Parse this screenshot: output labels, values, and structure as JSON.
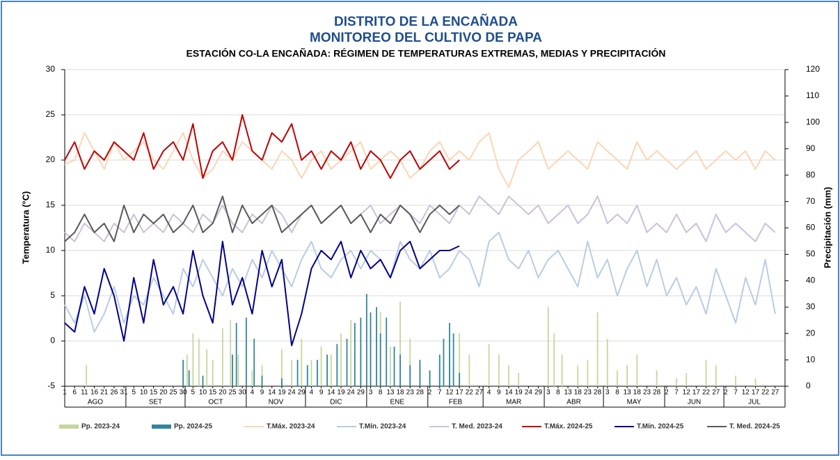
{
  "chart_data": {
    "type": "line",
    "title": "DISTRITO DE LA ENCAÑADA",
    "subtitle": "MONITOREO DEL CULTIVO DE PAPA",
    "subtitle2": "ESTACIÓN CO-LA ENCAÑADA: RÉGIMEN DE TEMPERATURAS EXTREMAS, MEDIAS Y PRECIPITACIÓN",
    "y_label": "Temperatura (°C)",
    "y2_label": "Precipitación (mm)",
    "months": [
      "AGO",
      "SET",
      "OCT",
      "NOV",
      "DIC",
      "ENE",
      "FEB",
      "MAR",
      "ABR",
      "MAY",
      "JUN",
      "JUL"
    ],
    "xlim": [
      0,
      365
    ],
    "ylim": [
      -5,
      30
    ],
    "yticks": [
      -5,
      0,
      5,
      10,
      15,
      20,
      25,
      30
    ],
    "y2lim": [
      0,
      120
    ],
    "y2ticks": [
      0,
      10,
      20,
      30,
      40,
      50,
      60,
      70,
      80,
      90,
      100,
      110,
      120
    ],
    "grid": true,
    "xticks": [
      {
        "value": 0,
        "label": "1"
      },
      {
        "value": 5,
        "label": "6"
      },
      {
        "value": 10,
        "label": "11"
      },
      {
        "value": 15,
        "label": "16"
      },
      {
        "value": 20,
        "label": "21"
      },
      {
        "value": 25,
        "label": "26"
      },
      {
        "value": 30,
        "label": "31"
      },
      {
        "value": 35,
        "label": "5"
      },
      {
        "value": 40,
        "label": "10"
      },
      {
        "value": 45,
        "label": "15"
      },
      {
        "value": 50,
        "label": "20"
      },
      {
        "value": 55,
        "label": "25"
      },
      {
        "value": 60,
        "label": "30"
      },
      {
        "value": 65,
        "label": "5"
      },
      {
        "value": 70,
        "label": "10"
      },
      {
        "value": 75,
        "label": "15"
      },
      {
        "value": 80,
        "label": "20"
      },
      {
        "value": 85,
        "label": "25"
      },
      {
        "value": 90,
        "label": "30"
      },
      {
        "value": 95,
        "label": "4"
      },
      {
        "value": 100,
        "label": "9"
      },
      {
        "value": 105,
        "label": "14"
      },
      {
        "value": 110,
        "label": "19"
      },
      {
        "value": 115,
        "label": "24"
      },
      {
        "value": 120,
        "label": "29"
      },
      {
        "value": 125,
        "label": "4"
      },
      {
        "value": 130,
        "label": "9"
      },
      {
        "value": 135,
        "label": "14"
      },
      {
        "value": 140,
        "label": "19"
      },
      {
        "value": 145,
        "label": "24"
      },
      {
        "value": 150,
        "label": "29"
      },
      {
        "value": 155,
        "label": "3"
      },
      {
        "value": 160,
        "label": "8"
      },
      {
        "value": 165,
        "label": "13"
      },
      {
        "value": 170,
        "label": "18"
      },
      {
        "value": 175,
        "label": "23"
      },
      {
        "value": 180,
        "label": "28"
      },
      {
        "value": 185,
        "label": "2"
      },
      {
        "value": 190,
        "label": "7"
      },
      {
        "value": 195,
        "label": "12"
      },
      {
        "value": 200,
        "label": "17"
      },
      {
        "value": 205,
        "label": "22"
      },
      {
        "value": 210,
        "label": "27"
      },
      {
        "value": 215,
        "label": "4"
      },
      {
        "value": 220,
        "label": "9"
      },
      {
        "value": 225,
        "label": "14"
      },
      {
        "value": 230,
        "label": "19"
      },
      {
        "value": 235,
        "label": "24"
      },
      {
        "value": 240,
        "label": "29"
      },
      {
        "value": 245,
        "label": "3"
      },
      {
        "value": 250,
        "label": "8"
      },
      {
        "value": 255,
        "label": "13"
      },
      {
        "value": 260,
        "label": "18"
      },
      {
        "value": 265,
        "label": "23"
      },
      {
        "value": 270,
        "label": "28"
      },
      {
        "value": 275,
        "label": "3"
      },
      {
        "value": 280,
        "label": "8"
      },
      {
        "value": 285,
        "label": "13"
      },
      {
        "value": 290,
        "label": "18"
      },
      {
        "value": 295,
        "label": "23"
      },
      {
        "value": 300,
        "label": "28"
      },
      {
        "value": 305,
        "label": "2"
      },
      {
        "value": 310,
        "label": "7"
      },
      {
        "value": 315,
        "label": "12"
      },
      {
        "value": 320,
        "label": "17"
      },
      {
        "value": 325,
        "label": "22"
      },
      {
        "value": 330,
        "label": "27"
      },
      {
        "value": 335,
        "label": "2"
      },
      {
        "value": 340,
        "label": "7"
      },
      {
        "value": 345,
        "label": "12"
      },
      {
        "value": 350,
        "label": "17"
      },
      {
        "value": 355,
        "label": "22"
      },
      {
        "value": 360,
        "label": "27"
      }
    ],
    "x": [
      0,
      5,
      10,
      15,
      20,
      25,
      30,
      35,
      40,
      45,
      50,
      55,
      60,
      65,
      70,
      75,
      80,
      85,
      90,
      95,
      100,
      105,
      110,
      115,
      120,
      125,
      130,
      135,
      140,
      145,
      150,
      155,
      160,
      165,
      170,
      175,
      180,
      185,
      190,
      195,
      200,
      205,
      210,
      215,
      220,
      225,
      230,
      235,
      240,
      245,
      250,
      255,
      260,
      265,
      270,
      275,
      280,
      285,
      290,
      295,
      300,
      305,
      310,
      315,
      320,
      325,
      330,
      335,
      340,
      345,
      350,
      355,
      360
    ],
    "series": [
      {
        "name": "Pp. 2023-24",
        "type": "bar",
        "axis": "y2",
        "color": "#c4d79b",
        "x": [
          11,
          62,
          65,
          68,
          72,
          75,
          80,
          84,
          88,
          95,
          100,
          110,
          115,
          120,
          125,
          130,
          135,
          140,
          145,
          150,
          155,
          160,
          165,
          170,
          175,
          180,
          185,
          190,
          195,
          200,
          205,
          215,
          220,
          225,
          230,
          245,
          248,
          252,
          260,
          265,
          270,
          275,
          280,
          285,
          290,
          300,
          310,
          315,
          325,
          330,
          340,
          350
        ],
        "values": [
          8,
          12,
          20,
          18,
          14,
          10,
          22,
          25,
          12,
          6,
          8,
          14,
          10,
          18,
          10,
          15,
          12,
          20,
          25,
          18,
          22,
          28,
          15,
          32,
          18,
          8,
          6,
          10,
          14,
          20,
          12,
          16,
          12,
          8,
          5,
          30,
          20,
          12,
          8,
          10,
          28,
          18,
          6,
          8,
          12,
          6,
          3,
          5,
          10,
          8,
          4,
          3
        ]
      },
      {
        "name": "Pp. 2024-25",
        "type": "bar",
        "axis": "y2",
        "color": "#31859c",
        "x": [
          60,
          63,
          70,
          85,
          87,
          92,
          96,
          100,
          110,
          118,
          123,
          128,
          133,
          138,
          143,
          147,
          150,
          153,
          155,
          158,
          160,
          163,
          167,
          170,
          175,
          180,
          185,
          190,
          192,
          195,
          197,
          200
        ],
        "values": [
          10,
          6,
          4,
          12,
          24,
          26,
          18,
          4,
          3,
          10,
          8,
          10,
          12,
          16,
          18,
          24,
          26,
          35,
          28,
          30,
          20,
          26,
          15,
          12,
          8,
          10,
          6,
          12,
          18,
          24,
          20,
          5
        ]
      },
      {
        "name": "T.Máx. 2023-24",
        "color": "#fcd5b4",
        "values": [
          19.5,
          20,
          23,
          21,
          19,
          22,
          20,
          21,
          22,
          20,
          19,
          21,
          23,
          20,
          18,
          19,
          21,
          20,
          22,
          21,
          20,
          19,
          21,
          20,
          18,
          20,
          21,
          19,
          20,
          21,
          22,
          19,
          20,
          21,
          20,
          18,
          19,
          21,
          22,
          20,
          21,
          20,
          22,
          23,
          19,
          17,
          20,
          21,
          22,
          19,
          20,
          21,
          20,
          19,
          22,
          21,
          20,
          19,
          22,
          20,
          21,
          20,
          19,
          20,
          21,
          19,
          20,
          21,
          20,
          21,
          19,
          21,
          20
        ]
      },
      {
        "name": "T.Mín. 2023-24",
        "color": "#b8cce4",
        "values": [
          4,
          2,
          5,
          1,
          3,
          6,
          2,
          5,
          4,
          7,
          5,
          3,
          8,
          6,
          9,
          7,
          5,
          8,
          6,
          9,
          7,
          10,
          8,
          6,
          9,
          11,
          8,
          7,
          9,
          10,
          8,
          10,
          9,
          7,
          11,
          9,
          8,
          10,
          7,
          8,
          10,
          9,
          6,
          11,
          12,
          9,
          8,
          10,
          7,
          9,
          10,
          8,
          6,
          11,
          7,
          9,
          5,
          8,
          10,
          6,
          9,
          5,
          7,
          4,
          6,
          3,
          8,
          5,
          2,
          7,
          4,
          9,
          3
        ]
      },
      {
        "name": "T. Med. 2023-24",
        "color": "#ccc0da",
        "values": [
          12,
          11,
          13,
          12,
          11,
          13,
          12,
          14,
          12,
          13,
          12,
          14,
          13,
          12,
          14,
          13,
          15,
          13,
          12,
          14,
          13,
          15,
          14,
          12,
          14,
          15,
          13,
          14,
          15,
          13,
          14,
          15,
          13,
          14,
          15,
          14,
          13,
          15,
          14,
          13,
          15,
          14,
          16,
          15,
          14,
          16,
          15,
          14,
          15,
          13,
          14,
          15,
          13,
          14,
          16,
          13,
          14,
          13,
          15,
          12,
          13,
          12,
          14,
          12,
          13,
          11,
          14,
          12,
          13,
          12,
          11,
          13,
          12
        ]
      },
      {
        "name": "T.Máx. 2024-25",
        "color": "#c00000",
        "values": [
          20,
          22,
          19,
          21,
          20,
          22,
          21,
          20,
          23,
          19,
          21,
          22,
          20,
          24,
          18,
          21,
          22,
          20,
          25,
          21,
          20,
          23,
          22,
          24,
          20,
          21,
          19,
          21,
          20,
          22,
          19,
          21,
          20,
          18,
          20,
          21,
          19,
          20,
          21,
          19,
          20,
          null,
          null,
          null,
          null,
          null,
          null,
          null,
          null,
          null,
          null,
          null,
          null,
          null,
          null,
          null,
          null,
          null,
          null,
          null,
          null,
          null,
          null,
          null,
          null,
          null,
          null,
          null,
          null,
          null,
          null,
          null,
          null
        ]
      },
      {
        "name": "T.Mín. 2024-25",
        "color": "#00008b",
        "values": [
          2,
          1,
          6,
          3,
          8,
          5,
          0,
          7,
          2,
          9,
          4,
          6,
          3,
          10,
          5,
          2,
          11,
          4,
          7,
          3,
          10,
          6,
          9,
          -0.5,
          3,
          8,
          10,
          9,
          11,
          7,
          10,
          8,
          9,
          7,
          10,
          11,
          8,
          9,
          10,
          10,
          10.5,
          null,
          null,
          null,
          null,
          null,
          null,
          null,
          null,
          null,
          null,
          null,
          null,
          null,
          null,
          null,
          null,
          null,
          null,
          null,
          null,
          null,
          null,
          null,
          null,
          null,
          null,
          null,
          null,
          null,
          null,
          null,
          null
        ]
      },
      {
        "name": "T. Med. 2024-25",
        "color": "#595959",
        "values": [
          11,
          12,
          14,
          12,
          13,
          11,
          15,
          12,
          14,
          13,
          14,
          12,
          13,
          15,
          12,
          13,
          16,
          12,
          15,
          13,
          14,
          15,
          12,
          13,
          14,
          15,
          13,
          14,
          15,
          13,
          14,
          12,
          14,
          13,
          15,
          14,
          12,
          14,
          15,
          14,
          15,
          null,
          null,
          null,
          null,
          null,
          null,
          null,
          null,
          null,
          null,
          null,
          null,
          null,
          null,
          null,
          null,
          null,
          null,
          null,
          null,
          null,
          null,
          null,
          null,
          null,
          null,
          null,
          null,
          null,
          null,
          null,
          null
        ]
      }
    ]
  }
}
